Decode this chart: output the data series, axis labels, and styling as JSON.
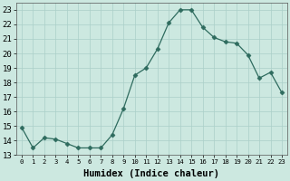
{
  "x": [
    0,
    1,
    2,
    3,
    4,
    5,
    6,
    7,
    8,
    9,
    10,
    11,
    12,
    13,
    14,
    15,
    16,
    17,
    18,
    19,
    20,
    21,
    22,
    23
  ],
  "y": [
    14.9,
    13.5,
    14.2,
    14.1,
    13.8,
    13.5,
    13.5,
    13.5,
    14.4,
    16.2,
    18.5,
    19.0,
    20.3,
    22.1,
    23.0,
    23.0,
    21.8,
    21.1,
    20.8,
    20.7,
    19.9,
    18.3,
    18.7,
    17.3
  ],
  "xlabel": "Humidex (Indice chaleur)",
  "xlim": [
    -0.5,
    23.5
  ],
  "ylim": [
    13,
    23.5
  ],
  "yticks": [
    13,
    14,
    15,
    16,
    17,
    18,
    19,
    20,
    21,
    22,
    23
  ],
  "xticks": [
    0,
    1,
    2,
    3,
    4,
    5,
    6,
    7,
    8,
    9,
    10,
    11,
    12,
    13,
    14,
    15,
    16,
    17,
    18,
    19,
    20,
    21,
    22,
    23
  ],
  "xtick_labels_single": [
    "0",
    "1",
    "2",
    "3",
    "4",
    "5",
    "6",
    "7",
    "8",
    "9"
  ],
  "xtick_labels_double": [
    "10",
    "11",
    "12",
    "13",
    "14",
    "15",
    "16",
    "17",
    "18",
    "19",
    "20",
    "21",
    "22",
    "23"
  ],
  "line_color": "#2e6b5e",
  "marker": "D",
  "marker_size": 2.5,
  "bg_color": "#cce8e0",
  "grid_color": "#aacfc8",
  "xlabel_fontsize": 7.5,
  "tick_fontsize_single": 6.5,
  "tick_fontsize_double": 5.2
}
